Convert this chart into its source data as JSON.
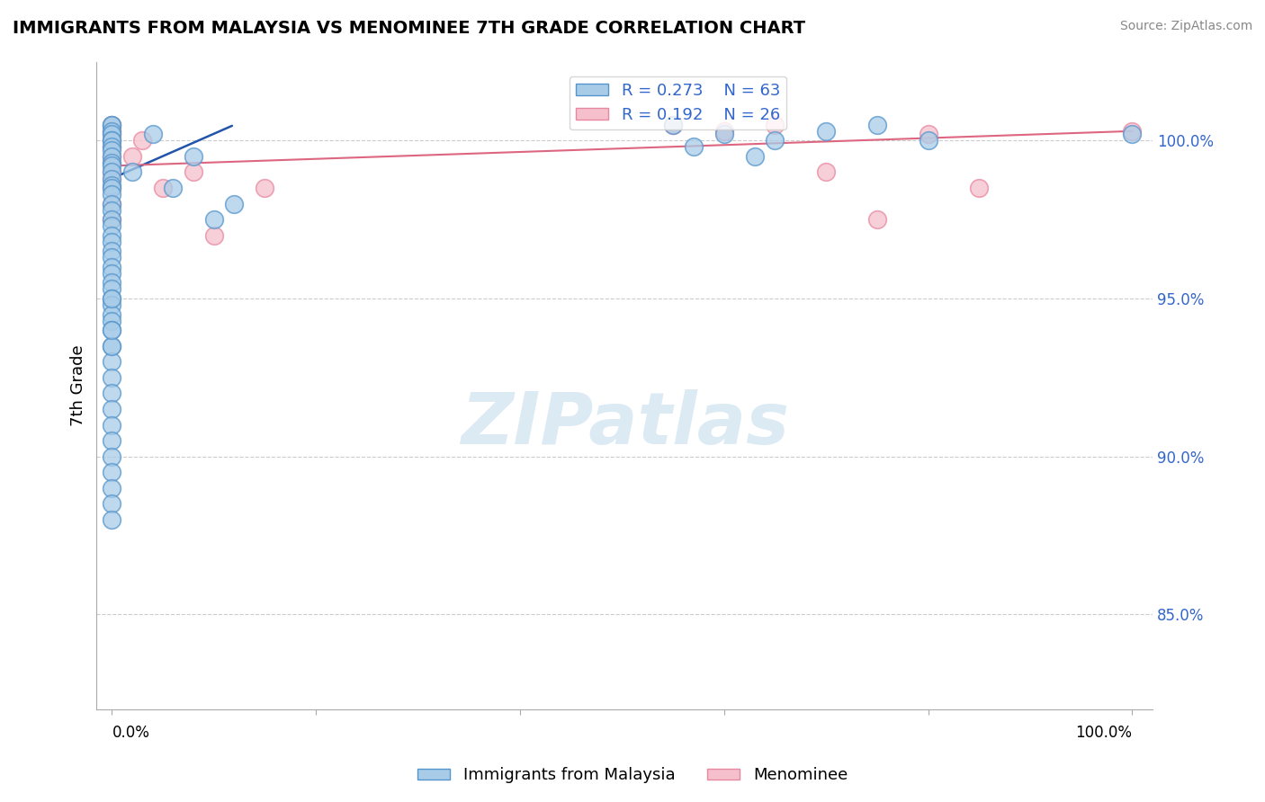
{
  "title": "IMMIGRANTS FROM MALAYSIA VS MENOMINEE 7TH GRADE CORRELATION CHART",
  "source": "Source: ZipAtlas.com",
  "ylabel": "7th Grade",
  "right_yticks": [
    85.0,
    90.0,
    95.0,
    100.0
  ],
  "legend_r1": "R = 0.273",
  "legend_n1": "N = 63",
  "legend_r2": "R = 0.192",
  "legend_n2": "N = 26",
  "blue_face_color": "#a8cce8",
  "blue_edge_color": "#5595cc",
  "pink_face_color": "#f5c0cc",
  "pink_edge_color": "#e888a0",
  "blue_trend_color": "#2255aa",
  "pink_trend_color": "#dd6680",
  "legend_text_color": "#3366cc",
  "watermark_color": "#c5dcee",
  "ylim_min": 82.0,
  "ylim_max": 102.5,
  "xlim_min": -0.015,
  "xlim_max": 1.02,
  "blue_x": [
    0.0,
    0.0,
    0.0,
    0.0,
    0.0,
    0.0,
    0.0,
    0.0,
    0.0,
    0.0,
    0.0,
    0.0,
    0.0,
    0.0,
    0.0,
    0.0,
    0.0,
    0.0,
    0.0,
    0.0,
    0.0,
    0.0,
    0.0,
    0.0,
    0.0,
    0.0,
    0.0,
    0.0,
    0.0,
    0.0,
    0.0,
    0.0,
    0.0,
    0.0,
    0.0,
    0.0,
    0.0,
    0.0,
    0.0,
    0.0,
    0.0,
    0.0,
    0.0,
    0.0,
    0.0,
    0.0,
    0.0,
    0.0,
    0.02,
    0.04,
    0.06,
    0.08,
    0.1,
    0.12,
    0.55,
    0.57,
    0.6,
    0.63,
    0.65,
    0.7,
    0.75,
    0.8,
    1.0
  ],
  "blue_y": [
    100.5,
    100.5,
    100.3,
    100.2,
    100.0,
    100.0,
    99.8,
    99.7,
    99.5,
    99.3,
    99.2,
    99.0,
    98.8,
    98.6,
    98.5,
    98.3,
    98.0,
    97.8,
    97.5,
    97.3,
    97.0,
    96.8,
    96.5,
    96.3,
    96.0,
    95.8,
    95.5,
    95.3,
    95.0,
    94.8,
    94.5,
    94.3,
    94.0,
    93.5,
    93.0,
    92.5,
    92.0,
    91.5,
    91.0,
    90.5,
    90.0,
    89.5,
    89.0,
    88.5,
    88.0,
    93.5,
    94.0,
    95.0,
    99.0,
    100.2,
    98.5,
    99.5,
    97.5,
    98.0,
    100.5,
    99.8,
    100.2,
    99.5,
    100.0,
    100.3,
    100.5,
    100.0,
    100.2
  ],
  "pink_x": [
    0.0,
    0.0,
    0.0,
    0.0,
    0.0,
    0.0,
    0.0,
    0.0,
    0.0,
    0.0,
    0.0,
    0.0,
    0.02,
    0.03,
    0.05,
    0.08,
    0.1,
    0.15,
    0.55,
    0.6,
    0.65,
    0.7,
    0.75,
    0.8,
    0.85,
    1.0
  ],
  "pink_y": [
    100.5,
    100.3,
    100.2,
    100.0,
    99.8,
    99.5,
    99.3,
    99.0,
    98.8,
    98.5,
    98.0,
    97.5,
    99.5,
    100.0,
    98.5,
    99.0,
    97.0,
    98.5,
    100.5,
    100.3,
    100.5,
    99.0,
    97.5,
    100.2,
    98.5,
    100.3
  ],
  "blue_trend_x0": 0.0,
  "blue_trend_y0": 98.8,
  "blue_trend_x1": 0.12,
  "blue_trend_y1": 100.5,
  "pink_trend_x0": 0.0,
  "pink_trend_y0": 99.2,
  "pink_trend_x1": 1.0,
  "pink_trend_y1": 100.3
}
